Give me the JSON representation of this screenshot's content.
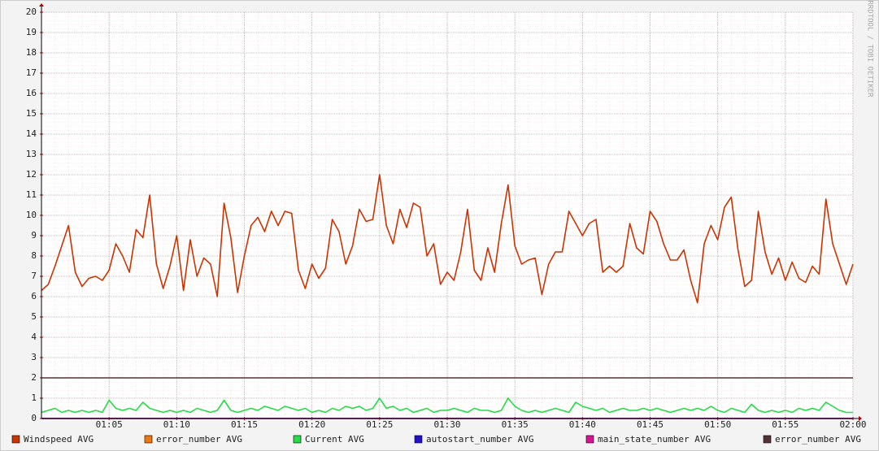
{
  "chart_data": {
    "type": "line",
    "watermark": "RRDTOOL / TOBI OETIKER",
    "x": [
      0,
      0.5,
      1,
      1.5,
      2,
      2.5,
      3,
      3.5,
      4,
      4.5,
      5,
      5.5,
      6,
      6.5,
      7,
      7.5,
      8,
      8.5,
      9,
      9.5,
      10,
      10.5,
      11,
      11.5,
      12,
      12.5,
      13,
      13.5,
      14,
      14.5,
      15,
      15.5,
      16,
      16.5,
      17,
      17.5,
      18,
      18.5,
      19,
      19.5,
      20,
      20.5,
      21,
      21.5,
      22,
      22.5,
      23,
      23.5,
      24,
      24.5,
      25,
      25.5,
      26,
      26.5,
      27,
      27.5,
      28,
      28.5,
      29,
      29.5,
      30,
      30.5,
      31,
      31.5,
      32,
      32.5,
      33,
      33.5,
      34,
      34.5,
      35,
      35.5,
      36,
      36.5,
      37,
      37.5,
      38,
      38.5,
      39,
      39.5,
      40,
      40.5,
      41,
      41.5,
      42,
      42.5,
      43,
      43.5,
      44,
      44.5,
      45,
      45.5,
      46,
      46.5,
      47,
      47.5,
      48,
      48.5,
      49,
      49.5,
      50,
      50.5,
      51,
      51.5,
      52,
      52.5,
      53,
      53.5,
      54,
      54.5,
      55,
      55.5,
      56,
      56.5,
      57,
      57.5,
      58,
      58.5,
      59,
      59.5,
      60
    ],
    "xlim": [
      0,
      60
    ],
    "xticks": [
      {
        "value": 5,
        "label": "01:05"
      },
      {
        "value": 10,
        "label": "01:10"
      },
      {
        "value": 15,
        "label": "01:15"
      },
      {
        "value": 20,
        "label": "01:20"
      },
      {
        "value": 25,
        "label": "01:25"
      },
      {
        "value": 30,
        "label": "01:30"
      },
      {
        "value": 35,
        "label": "01:35"
      },
      {
        "value": 40,
        "label": "01:40"
      },
      {
        "value": 45,
        "label": "01:45"
      },
      {
        "value": 50,
        "label": "01:50"
      },
      {
        "value": 55,
        "label": "01:55"
      },
      {
        "value": 60,
        "label": "02:00"
      }
    ],
    "ylim": [
      0,
      20
    ],
    "yticks": [
      0,
      1,
      2,
      3,
      4,
      5,
      6,
      7,
      8,
      9,
      10,
      11,
      12,
      13,
      14,
      15,
      16,
      17,
      18,
      19,
      20
    ],
    "grid": true,
    "series": [
      {
        "name": "Windspeed AVG",
        "color": "#cc3300",
        "values": [
          6.3,
          6.6,
          7.5,
          8.5,
          9.5,
          7.2,
          6.5,
          6.9,
          7.0,
          6.8,
          7.3,
          8.6,
          8.0,
          7.2,
          9.3,
          8.9,
          11.0,
          7.6,
          6.4,
          7.5,
          9.0,
          6.3,
          8.8,
          7.0,
          7.9,
          7.6,
          6.0,
          10.6,
          8.9,
          6.2,
          8.0,
          9.5,
          9.9,
          9.2,
          10.2,
          9.5,
          10.2,
          10.1,
          7.3,
          6.4,
          7.6,
          6.9,
          7.4,
          9.8,
          9.2,
          7.6,
          8.5,
          10.3,
          9.7,
          9.8,
          12.0,
          9.5,
          8.6,
          10.3,
          9.4,
          10.6,
          10.4,
          8.0,
          8.6,
          6.6,
          7.2,
          6.8,
          8.2,
          10.3,
          7.3,
          6.8,
          8.4,
          7.2,
          9.6,
          11.5,
          8.5,
          7.6,
          7.8,
          7.9,
          6.1,
          7.6,
          8.2,
          8.2,
          10.2,
          9.6,
          9.0,
          9.6,
          9.8,
          7.2,
          7.5,
          7.2,
          7.5,
          9.6,
          8.4,
          8.1,
          10.2,
          9.7,
          8.6,
          7.8,
          7.8,
          8.3,
          6.8,
          5.7,
          8.6,
          9.5,
          8.8,
          10.4,
          10.9,
          8.3,
          6.5,
          6.8,
          10.2,
          8.2,
          7.1,
          7.9,
          6.8,
          7.7,
          6.9,
          6.7,
          7.5,
          7.1,
          10.8,
          8.6,
          7.6,
          6.6,
          7.6
        ]
      },
      {
        "name": "error_number AVG",
        "color": "#ee7711",
        "values": [
          0,
          0,
          0,
          0,
          0,
          0,
          0,
          0,
          0,
          0,
          0,
          0,
          0,
          0,
          0,
          0,
          0,
          0,
          0,
          0,
          0,
          0,
          0,
          0,
          0,
          0,
          0,
          0,
          0,
          0,
          0,
          0,
          0,
          0,
          0,
          0,
          0,
          0,
          0,
          0,
          0,
          0,
          0,
          0,
          0,
          0,
          0,
          0,
          0,
          0,
          0,
          0,
          0,
          0,
          0,
          0,
          0,
          0,
          0,
          0,
          0,
          0,
          0,
          0,
          0,
          0,
          0,
          0,
          0,
          0,
          0,
          0,
          0,
          0,
          0,
          0,
          0,
          0,
          0,
          0,
          0,
          0,
          0,
          0,
          0,
          0,
          0,
          0,
          0,
          0,
          0,
          0,
          0,
          0,
          0,
          0,
          0,
          0,
          0,
          0,
          0,
          0,
          0,
          0,
          0,
          0,
          0,
          0,
          0,
          0,
          0,
          0,
          0,
          0,
          0,
          0,
          0,
          0,
          0,
          0,
          0
        ]
      },
      {
        "name": "Current AVG",
        "color": "#22dd44",
        "values": [
          0.3,
          0.4,
          0.5,
          0.3,
          0.4,
          0.3,
          0.4,
          0.3,
          0.4,
          0.3,
          0.9,
          0.5,
          0.4,
          0.5,
          0.4,
          0.8,
          0.5,
          0.4,
          0.3,
          0.4,
          0.3,
          0.4,
          0.3,
          0.5,
          0.4,
          0.3,
          0.4,
          0.9,
          0.4,
          0.3,
          0.4,
          0.5,
          0.4,
          0.6,
          0.5,
          0.4,
          0.6,
          0.5,
          0.4,
          0.5,
          0.3,
          0.4,
          0.3,
          0.5,
          0.4,
          0.6,
          0.5,
          0.6,
          0.4,
          0.5,
          1.0,
          0.5,
          0.6,
          0.4,
          0.5,
          0.3,
          0.4,
          0.5,
          0.3,
          0.4,
          0.4,
          0.5,
          0.4,
          0.3,
          0.5,
          0.4,
          0.4,
          0.3,
          0.4,
          1.0,
          0.6,
          0.4,
          0.3,
          0.4,
          0.3,
          0.4,
          0.5,
          0.4,
          0.3,
          0.8,
          0.6,
          0.5,
          0.4,
          0.5,
          0.3,
          0.4,
          0.5,
          0.4,
          0.4,
          0.5,
          0.4,
          0.5,
          0.4,
          0.3,
          0.4,
          0.5,
          0.4,
          0.5,
          0.4,
          0.6,
          0.4,
          0.3,
          0.5,
          0.4,
          0.3,
          0.7,
          0.4,
          0.3,
          0.4,
          0.3,
          0.4,
          0.3,
          0.5,
          0.4,
          0.5,
          0.4,
          0.8,
          0.6,
          0.4,
          0.3,
          0.3
        ]
      },
      {
        "name": "autostart_number AVG",
        "color": "#2211cc",
        "values": [
          0,
          0,
          0,
          0,
          0,
          0,
          0,
          0,
          0,
          0,
          0,
          0,
          0,
          0,
          0,
          0,
          0,
          0,
          0,
          0,
          0,
          0,
          0,
          0,
          0,
          0,
          0,
          0,
          0,
          0,
          0,
          0,
          0,
          0,
          0,
          0,
          0,
          0,
          0,
          0,
          0,
          0,
          0,
          0,
          0,
          0,
          0,
          0,
          0,
          0,
          0,
          0,
          0,
          0,
          0,
          0,
          0,
          0,
          0,
          0,
          0,
          0,
          0,
          0,
          0,
          0,
          0,
          0,
          0,
          0,
          0,
          0,
          0,
          0,
          0,
          0,
          0,
          0,
          0,
          0,
          0,
          0,
          0,
          0,
          0,
          0,
          0,
          0,
          0,
          0,
          0,
          0,
          0,
          0,
          0,
          0,
          0,
          0,
          0,
          0,
          0,
          0,
          0,
          0,
          0,
          0,
          0,
          0,
          0,
          0,
          0,
          0,
          0,
          0,
          0,
          0,
          0,
          0,
          0,
          0,
          0
        ]
      },
      {
        "name": "main_state_number AVG",
        "color": "#dd1199",
        "values": [
          0,
          0,
          0,
          0,
          0,
          0,
          0,
          0,
          0,
          0,
          0,
          0,
          0,
          0,
          0,
          0,
          0,
          0,
          0,
          0,
          0,
          0,
          0,
          0,
          0,
          0,
          0,
          0,
          0,
          0,
          0,
          0,
          0,
          0,
          0,
          0,
          0,
          0,
          0,
          0,
          0,
          0,
          0,
          0,
          0,
          0,
          0,
          0,
          0,
          0,
          0,
          0,
          0,
          0,
          0,
          0,
          0,
          0,
          0,
          0,
          0,
          0,
          0,
          0,
          0,
          0,
          0,
          0,
          0,
          0,
          0,
          0,
          0,
          0,
          0,
          0,
          0,
          0,
          0,
          0,
          0,
          0,
          0,
          0,
          0,
          0,
          0,
          0,
          0,
          0,
          0,
          0,
          0,
          0,
          0,
          0,
          0,
          0,
          0,
          0,
          0,
          0,
          0,
          0,
          0,
          0,
          0,
          0,
          0,
          0,
          0,
          0,
          0,
          0,
          0,
          0,
          0,
          0,
          0,
          0,
          0
        ]
      },
      {
        "name": "error_number AVG",
        "color": "#553333",
        "values": [
          2,
          2,
          2,
          2,
          2,
          2,
          2,
          2,
          2,
          2,
          2,
          2,
          2,
          2,
          2,
          2,
          2,
          2,
          2,
          2,
          2,
          2,
          2,
          2,
          2,
          2,
          2,
          2,
          2,
          2,
          2,
          2,
          2,
          2,
          2,
          2,
          2,
          2,
          2,
          2,
          2,
          2,
          2,
          2,
          2,
          2,
          2,
          2,
          2,
          2,
          2,
          2,
          2,
          2,
          2,
          2,
          2,
          2,
          2,
          2,
          2,
          2,
          2,
          2,
          2,
          2,
          2,
          2,
          2,
          2,
          2,
          2,
          2,
          2,
          2,
          2,
          2,
          2,
          2,
          2,
          2,
          2,
          2,
          2,
          2,
          2,
          2,
          2,
          2,
          2,
          2,
          2,
          2,
          2,
          2,
          2,
          2,
          2,
          2,
          2,
          2,
          2,
          2,
          2,
          2,
          2,
          2,
          2,
          2,
          2,
          2,
          2,
          2,
          2,
          2,
          2,
          2,
          2,
          2,
          2,
          2
        ]
      }
    ]
  }
}
